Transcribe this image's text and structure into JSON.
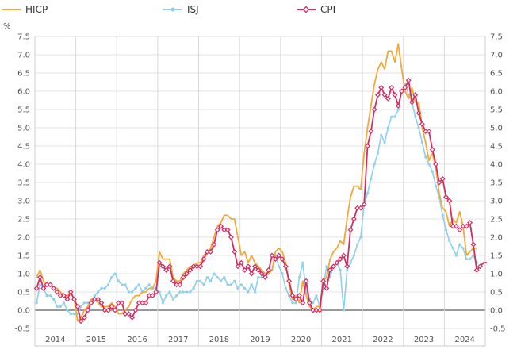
{
  "chart_data": {
    "type": "line",
    "title": "",
    "xlabel": "",
    "ylabel": "%",
    "ylim": [
      -0.5,
      7.5
    ],
    "yticks": [
      "-0.5",
      "0.0",
      "0.5",
      "1.0",
      "1.5",
      "2.0",
      "2.5",
      "3.0",
      "3.5",
      "4.0",
      "4.5",
      "5.0",
      "5.5",
      "6.0",
      "6.5",
      "7.0",
      "7.5"
    ],
    "years": [
      "2014",
      "2015",
      "2016",
      "2017",
      "2018",
      "2019",
      "2020",
      "2021",
      "2022",
      "2023",
      "2024"
    ],
    "x_start": "2014-01",
    "grid": true,
    "legend_position": "top",
    "series": [
      {
        "name": "HICP",
        "color": "#f2a93b",
        "marker": "none",
        "values": [
          0.9,
          1.1,
          0.8,
          0.7,
          0.7,
          0.6,
          0.6,
          0.5,
          0.4,
          0.4,
          0.5,
          0.3,
          -0.3,
          -0.2,
          0.0,
          0.1,
          0.3,
          0.3,
          0.2,
          0.1,
          0.1,
          0.1,
          0.2,
          0.1,
          -0.1,
          -0.1,
          0.0,
          0.1,
          0.3,
          0.4,
          0.4,
          0.5,
          0.5,
          0.6,
          0.6,
          0.8,
          1.6,
          1.4,
          1.4,
          1.4,
          0.9,
          0.8,
          0.8,
          1.0,
          1.1,
          1.2,
          1.2,
          1.3,
          1.3,
          1.5,
          1.6,
          1.7,
          2.0,
          2.3,
          2.4,
          2.6,
          2.6,
          2.5,
          2.5,
          2.0,
          1.5,
          1.6,
          1.3,
          1.5,
          1.3,
          1.2,
          1.1,
          1.0,
          1.0,
          1.1,
          1.6,
          1.7,
          1.6,
          1.3,
          0.7,
          0.3,
          0.4,
          0.2,
          0.8,
          0.4,
          0.1,
          0.0,
          0.1,
          0.1,
          0.8,
          0.9,
          1.4,
          1.6,
          1.7,
          1.9,
          1.8,
          2.5,
          3.1,
          3.4,
          3.4,
          3.3,
          4.3,
          5.0,
          5.6,
          6.2,
          6.6,
          6.8,
          6.6,
          7.1,
          7.1,
          6.8,
          7.3,
          6.6,
          6.0,
          5.8,
          6.1,
          5.7,
          5.7,
          5.0,
          4.6,
          4.1,
          4.3,
          3.9,
          3.2,
          2.8,
          2.7,
          2.3,
          2.5,
          2.4,
          2.7,
          2.3,
          1.5,
          1.6,
          1.7,
          1.7
        ],
        "markers": []
      },
      {
        "name": "ISJ",
        "color": "#8fd0ea",
        "marker": "circle",
        "values": [
          0.2,
          0.7,
          0.6,
          0.4,
          0.4,
          0.3,
          0.1,
          0.1,
          0.2,
          0.0,
          -0.1,
          -0.1,
          -0.1,
          0.1,
          0.2,
          0.2,
          0.2,
          0.4,
          0.5,
          0.6,
          0.6,
          0.7,
          0.9,
          1.0,
          0.8,
          0.7,
          0.7,
          0.5,
          0.5,
          0.6,
          0.7,
          0.5,
          0.6,
          0.7,
          0.6,
          0.6,
          0.5,
          0.2,
          0.4,
          0.5,
          0.3,
          0.4,
          0.5,
          0.5,
          0.5,
          0.5,
          0.6,
          0.8,
          0.8,
          0.7,
          0.9,
          0.8,
          1.0,
          0.9,
          0.8,
          0.9,
          0.7,
          0.7,
          0.8,
          0.6,
          0.7,
          0.6,
          0.5,
          0.7,
          0.5,
          0.9,
          0.9,
          0.9,
          1.0,
          1.1,
          1.5,
          1.2,
          1.0,
          0.6,
          0.4,
          0.2,
          0.2,
          0.9,
          1.3,
          0.5,
          0.3,
          0.2,
          0.4,
          0.1,
          0.6,
          1.2,
          0.9,
          1.2,
          1.3,
          1.1,
          0.0,
          1.1,
          1.3,
          1.5,
          1.8,
          2.0,
          2.9,
          3.2,
          3.6,
          4.0,
          4.3,
          4.8,
          4.6,
          5.0,
          5.3,
          5.3,
          5.5,
          6.0,
          6.2,
          5.9,
          5.7,
          5.3,
          5.0,
          4.6,
          4.2,
          4.0,
          3.8,
          3.4,
          3.1,
          2.6,
          2.2,
          1.9,
          1.7,
          1.5,
          1.8,
          1.7,
          1.4,
          1.4,
          1.5,
          1.3
        ],
        "markers": []
      },
      {
        "name": "CPI",
        "color": "#d62b5f",
        "marker": "diamond",
        "values": [
          0.6,
          0.9,
          0.6,
          0.7,
          0.7,
          0.6,
          0.5,
          0.4,
          0.4,
          0.3,
          0.5,
          0.3,
          0.1,
          -0.3,
          -0.2,
          0.0,
          0.2,
          0.3,
          0.3,
          0.2,
          0.0,
          0.0,
          0.1,
          0.0,
          0.2,
          0.2,
          -0.1,
          -0.1,
          -0.2,
          0.0,
          0.2,
          0.2,
          0.2,
          0.4,
          0.4,
          0.5,
          1.3,
          1.2,
          1.1,
          1.2,
          0.8,
          0.7,
          0.7,
          0.9,
          1.0,
          1.1,
          1.2,
          1.2,
          1.2,
          1.4,
          1.6,
          1.6,
          1.8,
          2.2,
          2.3,
          2.2,
          2.2,
          2.0,
          1.6,
          1.2,
          1.3,
          1.1,
          1.2,
          1.0,
          1.2,
          1.1,
          1.0,
          0.9,
          1.1,
          1.5,
          1.4,
          1.5,
          1.4,
          1.2,
          0.8,
          0.4,
          0.3,
          0.4,
          0.2,
          0.8,
          0.2,
          0.0,
          0.0,
          0.0,
          0.8,
          0.6,
          1.1,
          1.2,
          1.3,
          1.4,
          1.5,
          1.2,
          2.2,
          2.5,
          2.8,
          2.8,
          2.9,
          4.5,
          4.9,
          5.5,
          5.9,
          6.1,
          5.9,
          5.8,
          6.1,
          5.9,
          5.6,
          6.0,
          6.1,
          6.3,
          5.7,
          5.9,
          5.4,
          5.1,
          4.9,
          4.9,
          4.4,
          4.0,
          3.5,
          3.6,
          3.1,
          3.0,
          2.3,
          2.3,
          2.2,
          2.3,
          2.3,
          2.4,
          1.8,
          1.1,
          1.2,
          1.3,
          1.3
        ],
        "markers": [
          0,
          1,
          2,
          3,
          4,
          5,
          6,
          7,
          8,
          9,
          10,
          11,
          12,
          13,
          14,
          15,
          16,
          17,
          18,
          19,
          20,
          21,
          22,
          23,
          24,
          25,
          26,
          27,
          28,
          29,
          30,
          31,
          32,
          33,
          34,
          35,
          36,
          37,
          38,
          39,
          40,
          41,
          42,
          43,
          44,
          45,
          46,
          47,
          48,
          49,
          50,
          51,
          52,
          53,
          54,
          55,
          56,
          57,
          58,
          59,
          60,
          61,
          62,
          63,
          64,
          65,
          66,
          67,
          68,
          69,
          70,
          71,
          72,
          73,
          74,
          75,
          76,
          77,
          78,
          79,
          80,
          81,
          82,
          83,
          84,
          85,
          86,
          87,
          88,
          89,
          90,
          91,
          92,
          93,
          94,
          95,
          96,
          97,
          98,
          99,
          100,
          101,
          102,
          103,
          104,
          105,
          106,
          107,
          108,
          109,
          110,
          111,
          112,
          113,
          114,
          115,
          116,
          117,
          118,
          119,
          120,
          121,
          122,
          123,
          124,
          125,
          126,
          127,
          128,
          129,
          130
        ]
      }
    ]
  }
}
